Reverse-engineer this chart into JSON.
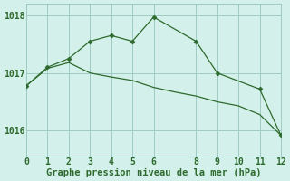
{
  "line1_x": [
    0,
    1,
    2,
    3,
    4,
    5,
    6,
    8,
    9,
    11,
    12
  ],
  "line1_y": [
    1016.78,
    1017.1,
    1017.25,
    1017.55,
    1017.65,
    1017.55,
    1017.97,
    1017.55,
    1017.0,
    1016.72,
    1015.92
  ],
  "line2_x": [
    0,
    1,
    2,
    3,
    4,
    5,
    6,
    7,
    8,
    9,
    10,
    11,
    12
  ],
  "line2_y": [
    1016.78,
    1017.08,
    1017.18,
    1017.0,
    1016.93,
    1016.87,
    1016.75,
    1016.67,
    1016.6,
    1016.5,
    1016.43,
    1016.28,
    1015.92
  ],
  "line_color": "#2d6a2d",
  "bg_color": "#d4f0ea",
  "grid_color": "#9eccc4",
  "xlabel": "Graphe pression niveau de la mer (hPa)",
  "xlim": [
    0,
    12
  ],
  "ylim": [
    1015.55,
    1018.2
  ],
  "yticks": [
    1016,
    1017,
    1018
  ],
  "xticks": [
    0,
    1,
    2,
    3,
    4,
    5,
    6,
    8,
    9,
    10,
    11,
    12
  ],
  "xlabel_fontsize": 7.5,
  "tick_fontsize": 7,
  "tick_color": "#2d6a2d",
  "marker": "D",
  "markersize": 2.5
}
